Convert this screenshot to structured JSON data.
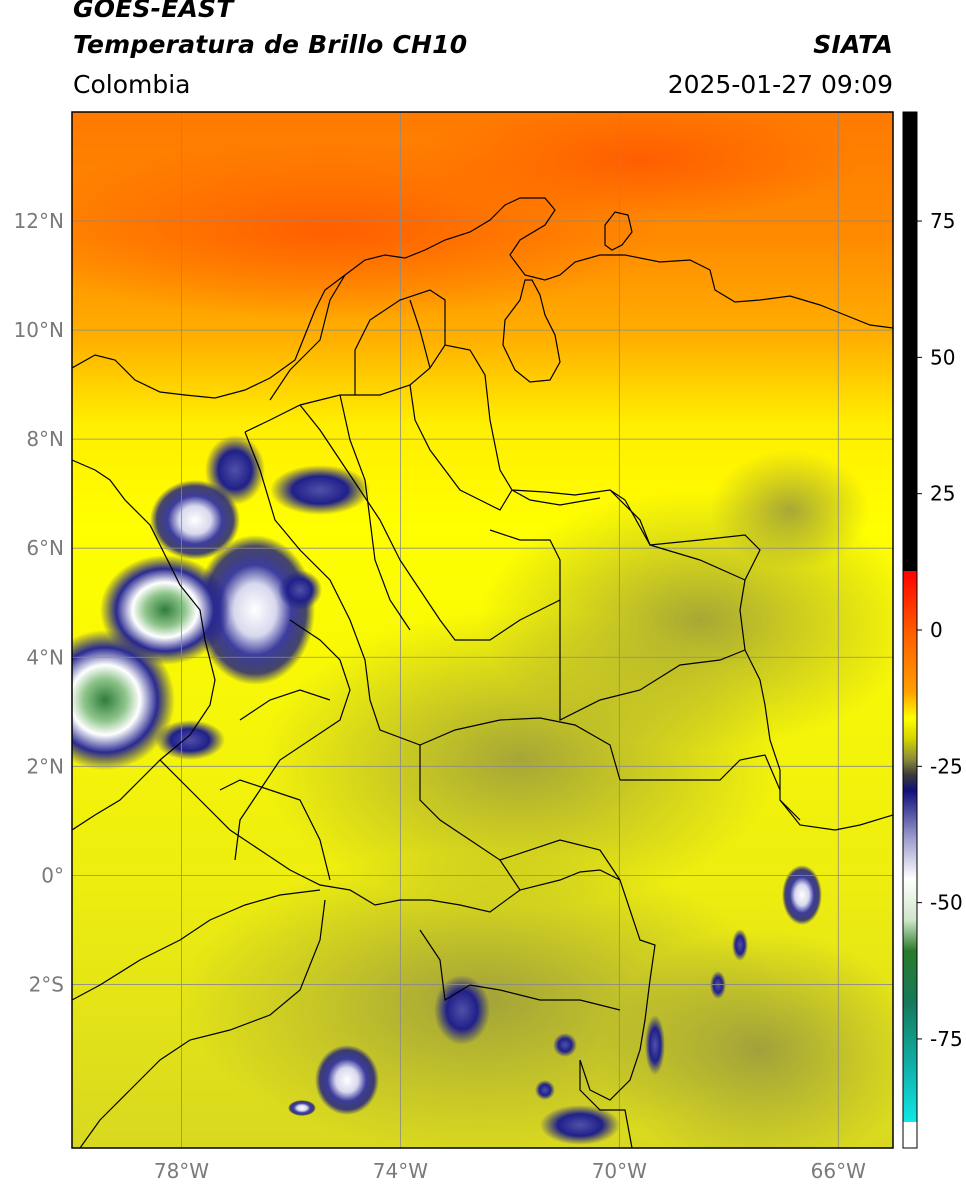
{
  "header": {
    "satellite": "GOES-EAST",
    "product": "Temperatura de Brillo CH10",
    "region": "Colombia",
    "agency": "SIATA",
    "timestamp": "2025-01-27 09:09"
  },
  "map": {
    "lon_range": [
      -80,
      -65
    ],
    "lat_range": [
      -5,
      14
    ],
    "grid": true,
    "lat_ticks": [
      {
        "value": 12,
        "label": "12°N"
      },
      {
        "value": 10,
        "label": "10°N"
      },
      {
        "value": 8,
        "label": "8°N"
      },
      {
        "value": 6,
        "label": "6°N"
      },
      {
        "value": 4,
        "label": "4°N"
      },
      {
        "value": 2,
        "label": "2°N"
      },
      {
        "value": 0,
        "label": "0°"
      },
      {
        "value": -2,
        "label": "2°S"
      }
    ],
    "lon_ticks": [
      {
        "value": -78,
        "label": "78°W"
      },
      {
        "value": -74,
        "label": "74°W"
      },
      {
        "value": -70,
        "label": "70°W"
      },
      {
        "value": -66,
        "label": "66°W"
      }
    ]
  },
  "colorbar": {
    "range": [
      -95,
      95
    ],
    "ticks": [
      {
        "value": 75,
        "label": "75"
      },
      {
        "value": 50,
        "label": "50"
      },
      {
        "value": 25,
        "label": "25"
      },
      {
        "value": 0,
        "label": "0"
      },
      {
        "value": -25,
        "label": "-25"
      },
      {
        "value": -50,
        "label": "-50"
      },
      {
        "value": -75,
        "label": "-75"
      }
    ],
    "colors": {
      "black": "#000000",
      "red": "#ff1a00",
      "orange": "#ff8c00",
      "yellow": "#ffff00",
      "olive": "#8a8a3c",
      "navy": "#10107a",
      "white": "#ffffff",
      "green": "#2a7a2a",
      "cyan": "#10e0e0"
    }
  }
}
